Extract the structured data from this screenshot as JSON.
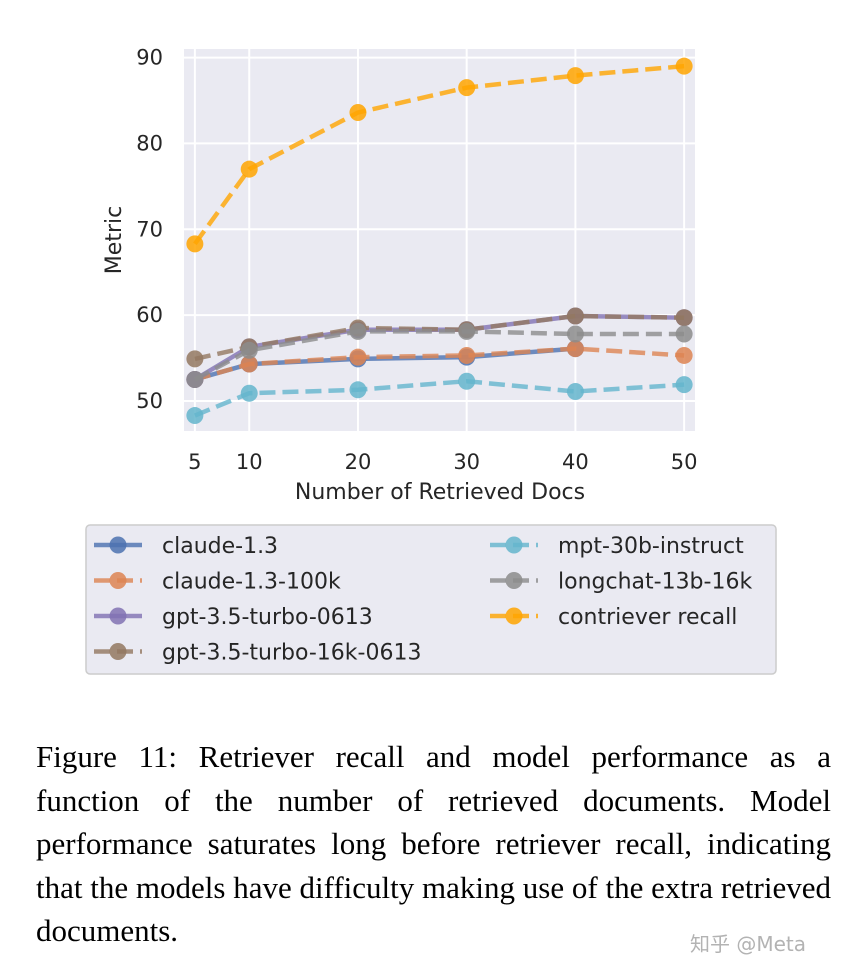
{
  "chart_data": {
    "type": "line",
    "xlabel": "Number of Retrieved Docs",
    "ylabel": "Metric",
    "x": [
      5,
      10,
      20,
      30,
      40,
      50
    ],
    "xticks": [
      5,
      10,
      20,
      30,
      40,
      50
    ],
    "yticks": [
      50,
      60,
      70,
      80,
      90
    ],
    "xlim": [
      4,
      51
    ],
    "ylim": [
      46.5,
      91
    ],
    "grid": true,
    "legend_position": "below",
    "series": [
      {
        "name": "claude-1.3",
        "color": "#4c72b0",
        "style": "solid",
        "x": [
          5,
          10,
          20,
          30,
          40
        ],
        "values": [
          52.5,
          54.3,
          54.9,
          55.1,
          56.1
        ]
      },
      {
        "name": "claude-1.3-100k",
        "color": "#dd8452",
        "style": "dashed",
        "x": [
          5,
          10,
          20,
          30,
          40,
          50
        ],
        "values": [
          52.5,
          54.3,
          55.1,
          55.3,
          56.1,
          55.3
        ]
      },
      {
        "name": "gpt-3.5-turbo-0613",
        "color": "#8172b3",
        "style": "solid",
        "x": [
          5,
          10,
          20,
          30,
          40,
          50
        ],
        "values": [
          52.5,
          56.3,
          58.3,
          58.3,
          59.9,
          59.7
        ]
      },
      {
        "name": "gpt-3.5-turbo-16k-0613",
        "color": "#937860",
        "style": "dashed",
        "x": [
          5,
          10,
          20,
          30,
          40,
          50
        ],
        "values": [
          54.9,
          56.3,
          58.5,
          58.3,
          59.9,
          59.7
        ]
      },
      {
        "name": "mpt-30b-instruct",
        "color": "#64b5cd",
        "style": "dashed",
        "x": [
          5,
          10,
          20,
          30,
          40,
          50
        ],
        "values": [
          48.3,
          50.9,
          51.3,
          52.3,
          51.1,
          51.9
        ]
      },
      {
        "name": "longchat-13b-16k",
        "color": "#8c8c8c",
        "style": "dashed",
        "x": [
          5,
          10,
          20,
          30,
          40,
          50
        ],
        "values": [
          52.5,
          55.9,
          58.1,
          58.1,
          57.8,
          57.8
        ]
      },
      {
        "name": "contriever recall",
        "color": "#ffa500",
        "style": "dashed",
        "x": [
          5,
          10,
          20,
          30,
          40,
          50
        ],
        "values": [
          68.3,
          77.0,
          83.6,
          86.5,
          87.9,
          89.0
        ]
      }
    ],
    "legend_order": [
      0,
      4,
      1,
      5,
      2,
      6,
      3
    ]
  },
  "caption": "Figure 11: Retriever recall and model performance as a function of the number of retrieved documents. Model performance saturates long before retriever recall, indicating that the models have difficulty making use of the extra retrieved documents.",
  "watermark": "知乎 @Meta"
}
